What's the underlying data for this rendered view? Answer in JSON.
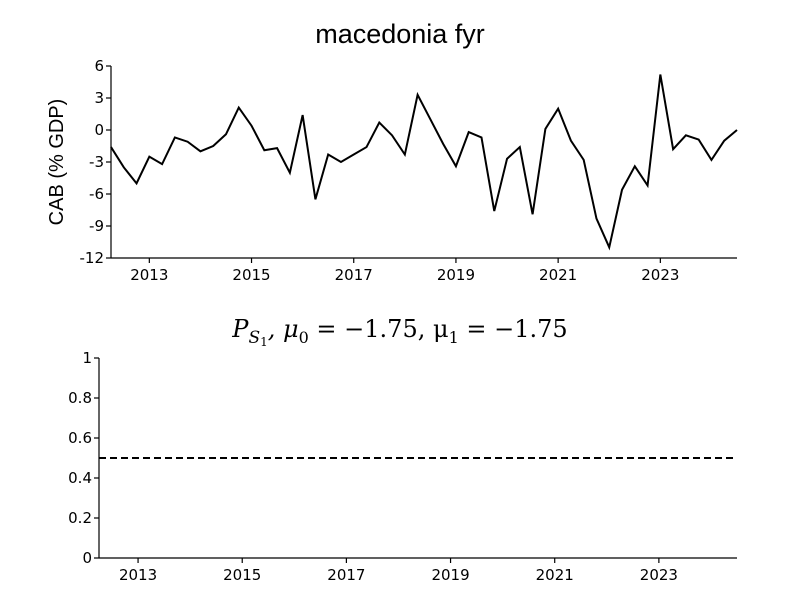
{
  "chart_data": [
    {
      "type": "line",
      "title": "macedonia fyr",
      "ylabel": "CAB (% GDP)",
      "xlim": [
        2012.25,
        2024.5
      ],
      "ylim": [
        -12,
        6
      ],
      "y_ticks": [
        6,
        3,
        0,
        -3,
        -6,
        -9,
        -12
      ],
      "y_tick_labels": [
        "6",
        "3",
        "0",
        "-3",
        "-6",
        "-9",
        "-12"
      ],
      "x_ticks": [
        2013,
        2015,
        2017,
        2019,
        2021,
        2023
      ],
      "x_tick_labels": [
        "2013",
        "2015",
        "2017",
        "2019",
        "2021",
        "2023"
      ],
      "grid": false,
      "series": [
        {
          "x": [
            2012.25,
            2012.5,
            2012.75,
            2013.0,
            2013.25,
            2013.5,
            2013.75,
            2014.0,
            2014.25,
            2014.5,
            2014.75,
            2015.0,
            2015.25,
            2015.5,
            2015.75,
            2016.0,
            2016.25,
            2016.5,
            2016.75,
            2017.0,
            2017.25,
            2017.5,
            2017.75,
            2018.0,
            2018.25,
            2018.5,
            2018.75,
            2019.0,
            2019.25,
            2019.5,
            2019.75,
            2020.0,
            2020.25,
            2020.5,
            2020.75,
            2021.0,
            2021.25,
            2021.5,
            2021.75,
            2022.0,
            2022.25,
            2022.5,
            2022.75,
            2023.0,
            2023.25,
            2023.5,
            2023.75,
            2024.0,
            2024.25,
            2024.5
          ],
          "values": [
            -1.6,
            -3.5,
            -5.0,
            -2.5,
            -3.2,
            -0.7,
            -1.1,
            -2.0,
            -1.5,
            -0.4,
            2.1,
            0.4,
            -1.9,
            -1.7,
            -4.0,
            1.4,
            -6.5,
            -2.3,
            -3.0,
            -2.3,
            -1.6,
            0.7,
            -0.5,
            -2.3,
            3.3,
            1.0,
            -1.3,
            -3.4,
            -0.2,
            -0.7,
            -7.6,
            -2.7,
            -1.6,
            -7.9,
            0.1,
            2.0,
            -1.0,
            -2.8,
            -8.3,
            -11.0,
            -5.6,
            -3.4,
            -5.2,
            5.2,
            -1.8,
            -0.5,
            -0.9,
            -2.8,
            -1.0,
            0.0
          ]
        }
      ]
    },
    {
      "type": "line",
      "title": "P_{S_1}, μ_0 = −1.75, μ_1 = −1.75",
      "title_parts": {
        "p": "P",
        "s": "S",
        "one": "1",
        "rest": ", μ",
        "mu0_sub": "0",
        "mu0_eq": " = −1.75, μ",
        "mu1_sub": "1",
        "mu1_eq": " = −1.75"
      },
      "xlim": [
        2012.25,
        2024.5
      ],
      "ylim": [
        0,
        1
      ],
      "y_ticks": [
        1,
        0.8,
        0.6,
        0.4,
        0.2,
        0
      ],
      "y_tick_labels": [
        "1",
        "0.8",
        "0.6",
        "0.4",
        "0.2",
        "0"
      ],
      "x_ticks": [
        2013,
        2015,
        2017,
        2019,
        2021,
        2023
      ],
      "x_tick_labels": [
        "2013",
        "2015",
        "2017",
        "2019",
        "2021",
        "2023"
      ],
      "grid": false,
      "series": [
        {
          "style": "dashed",
          "x": [
            2012.25,
            2024.5
          ],
          "values": [
            0.5,
            0.5
          ]
        }
      ]
    }
  ]
}
